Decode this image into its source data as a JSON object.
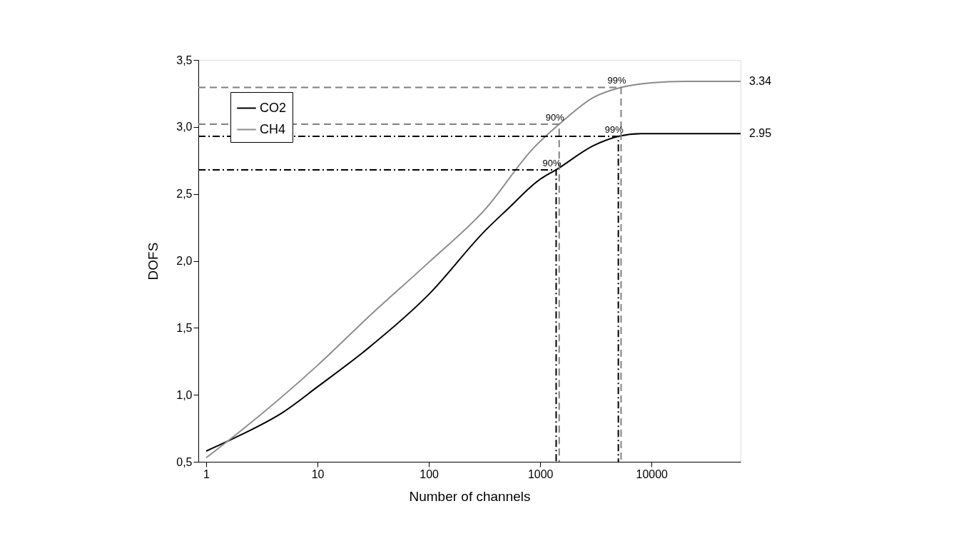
{
  "chart_data": {
    "type": "line",
    "xlabel": "Number of channels",
    "ylabel": "DOFS",
    "log": "x",
    "xlim": [
      0.85,
      63000
    ],
    "xticks": [
      1,
      10,
      100,
      1000,
      10000
    ],
    "ylim": [
      0.5,
      3.5
    ],
    "yticks": [
      {
        "value": 0.5,
        "label": "0,5"
      },
      {
        "value": 1.0,
        "label": "1,0"
      },
      {
        "value": 1.5,
        "label": "1,5"
      },
      {
        "value": 2.0,
        "label": "2,0"
      },
      {
        "value": 2.5,
        "label": "2,5"
      },
      {
        "value": 3.0,
        "label": "3,0"
      },
      {
        "value": 3.5,
        "label": "3,5"
      }
    ],
    "grid": false,
    "legend": "top left",
    "line_style": "solid",
    "marker": "none",
    "series": [
      {
        "name": "CO2",
        "color": "#000000",
        "x": [
          1,
          2.04,
          4.9,
          10,
          27.7,
          100,
          324,
          500,
          1000,
          1390,
          3000,
          5030,
          8000,
          20000,
          63000
        ],
        "values": [
          0.58,
          0.7,
          0.87,
          1.06,
          1.34,
          1.75,
          2.23,
          2.38,
          2.61,
          2.68,
          2.86,
          2.93,
          2.95,
          2.95,
          2.95
        ]
      },
      {
        "name": "CH4",
        "color": "#8c8c8c",
        "x": [
          1,
          2.04,
          10,
          27.7,
          100,
          324,
          865,
          1480,
          3000,
          5320,
          10000,
          20000,
          63000
        ],
        "values": [
          0.53,
          0.73,
          1.22,
          1.57,
          1.99,
          2.39,
          2.84,
          3.02,
          3.22,
          3.295,
          3.33,
          3.34,
          3.34
        ]
      },
      {
        "type": "line",
        "color": "#808080",
        "line_style": "dashed",
        "x": [
          0.85,
          1480,
          1480
        ],
        "values": [
          3.02,
          3.02,
          0.5
        ]
      },
      {
        "type": "line",
        "color": "#808080",
        "line_style": "dashed",
        "x": [
          0.85,
          5320,
          5320
        ],
        "values": [
          3.295,
          3.295,
          0.5
        ]
      },
      {
        "type": "line",
        "color": "#000000",
        "line_style": "dashdot",
        "x": [
          0.85,
          1390,
          1390
        ],
        "values": [
          2.68,
          2.68,
          0.5
        ]
      },
      {
        "type": "line",
        "color": "#000000",
        "line_style": "dashdot",
        "x": [
          0.85,
          5030,
          5030
        ],
        "values": [
          2.93,
          2.93,
          0.5
        ]
      }
    ],
    "annotations": [
      {
        "text": "90%",
        "x": 1480,
        "y": 3.02
      },
      {
        "text": "99%",
        "x": 5320,
        "y": 3.295
      },
      {
        "text": "90%",
        "x": 1390,
        "y": 2.68
      },
      {
        "text": "99%",
        "x": 5030,
        "y": 2.93
      },
      {
        "text": "3.34",
        "x": 63000,
        "y": 3.34
      },
      {
        "text": "2.95",
        "x": 63000,
        "y": 2.95
      }
    ]
  }
}
